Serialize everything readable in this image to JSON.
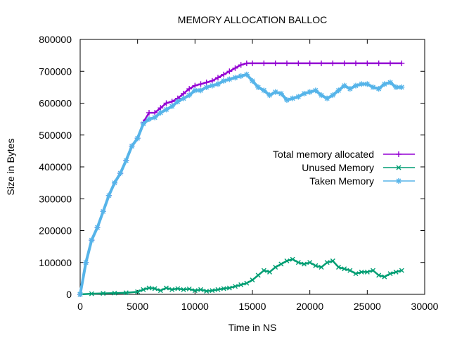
{
  "chart_data": {
    "type": "line",
    "title": "MEMORY ALLOCATION BALLOC",
    "xlabel": "Time in NS",
    "ylabel": "Size in Bytes",
    "xlim": [
      0,
      30000
    ],
    "ylim": [
      0,
      800000
    ],
    "xticks": [
      0,
      5000,
      10000,
      15000,
      20000,
      25000,
      30000
    ],
    "yticks": [
      0,
      100000,
      200000,
      300000,
      400000,
      500000,
      600000,
      700000,
      800000
    ],
    "grid": false,
    "legend_position": "right-middle",
    "series": [
      {
        "name": "Total memory allocated",
        "color": "#9400d3",
        "marker": "plus",
        "x": [
          0,
          500,
          1000,
          1500,
          2000,
          2500,
          3000,
          3500,
          4000,
          4500,
          5000,
          5500,
          6000,
          6500,
          7000,
          7500,
          8000,
          8500,
          9000,
          9500,
          10000,
          10500,
          11000,
          11500,
          12000,
          12500,
          13000,
          13500,
          14000,
          14500,
          15000,
          16000,
          17000,
          18000,
          19000,
          20000,
          21000,
          22000,
          23000,
          24000,
          25000,
          26000,
          27000,
          28000
        ],
        "values": [
          0,
          100000,
          170000,
          210000,
          260000,
          310000,
          350000,
          380000,
          420000,
          465000,
          490000,
          540000,
          570000,
          570000,
          585000,
          600000,
          605000,
          615000,
          630000,
          645000,
          655000,
          660000,
          665000,
          670000,
          680000,
          690000,
          700000,
          710000,
          720000,
          725000,
          725000,
          725000,
          725000,
          725000,
          725000,
          725000,
          725000,
          725000,
          725000,
          725000,
          725000,
          725000,
          725000,
          725000
        ]
      },
      {
        "name": "Unused Memory",
        "color": "#009e73",
        "marker": "cross",
        "x": [
          0,
          1000,
          2000,
          3000,
          4000,
          5000,
          5500,
          6000,
          6500,
          7000,
          7500,
          8000,
          8500,
          9000,
          9500,
          10000,
          10500,
          11000,
          11500,
          12000,
          12500,
          13000,
          13500,
          14000,
          14500,
          15000,
          15500,
          16000,
          16500,
          17000,
          17500,
          18000,
          18500,
          19000,
          19500,
          20000,
          20500,
          21000,
          21500,
          22000,
          22500,
          23000,
          23500,
          24000,
          24500,
          25000,
          25500,
          26000,
          26500,
          27000,
          27500,
          28000
        ],
        "values": [
          0,
          2000,
          3000,
          4000,
          5000,
          8000,
          15000,
          20000,
          18000,
          12000,
          20000,
          15000,
          18000,
          15000,
          17000,
          12000,
          15000,
          10000,
          12000,
          15000,
          18000,
          20000,
          25000,
          30000,
          35000,
          45000,
          60000,
          75000,
          70000,
          85000,
          95000,
          105000,
          110000,
          100000,
          95000,
          100000,
          90000,
          85000,
          100000,
          105000,
          85000,
          80000,
          75000,
          65000,
          70000,
          70000,
          75000,
          60000,
          55000,
          65000,
          70000,
          75000
        ]
      },
      {
        "name": "Taken Memory",
        "color": "#56b4e9",
        "marker": "star",
        "x": [
          0,
          500,
          1000,
          1500,
          2000,
          2500,
          3000,
          3500,
          4000,
          4500,
          5000,
          5500,
          6000,
          6500,
          7000,
          7500,
          8000,
          8500,
          9000,
          9500,
          10000,
          10500,
          11000,
          11500,
          12000,
          12500,
          13000,
          13500,
          14000,
          14500,
          15000,
          15500,
          16000,
          16500,
          17000,
          17500,
          18000,
          18500,
          19000,
          19500,
          20000,
          20500,
          21000,
          21500,
          22000,
          22500,
          23000,
          23500,
          24000,
          24500,
          25000,
          25500,
          26000,
          26500,
          27000,
          27500,
          28000
        ],
        "values": [
          0,
          100000,
          170000,
          210000,
          260000,
          310000,
          350000,
          380000,
          420000,
          465000,
          490000,
          535000,
          550000,
          555000,
          570000,
          580000,
          590000,
          605000,
          615000,
          625000,
          640000,
          640000,
          650000,
          655000,
          660000,
          670000,
          675000,
          680000,
          685000,
          690000,
          670000,
          650000,
          640000,
          625000,
          635000,
          630000,
          610000,
          615000,
          620000,
          630000,
          635000,
          640000,
          625000,
          615000,
          625000,
          640000,
          655000,
          645000,
          655000,
          660000,
          660000,
          650000,
          645000,
          660000,
          665000,
          650000,
          650000
        ]
      }
    ]
  }
}
